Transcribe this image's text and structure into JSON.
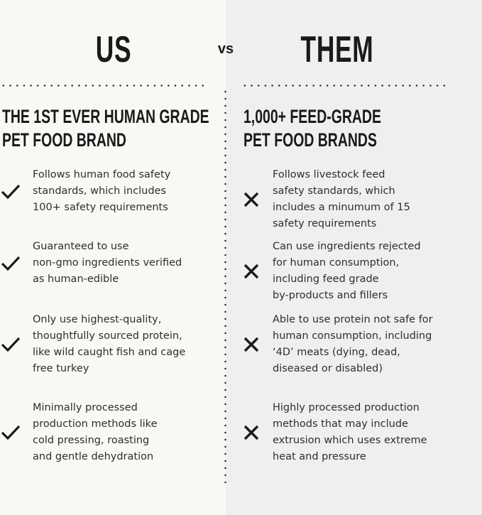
{
  "us": {
    "title": "US",
    "heading": [
      "THE 1ST EVER HUMAN GRADE",
      "PET FOOD BRAND"
    ],
    "items": [
      {
        "icon": "check-icon",
        "lines": [
          "Follows human food safety",
          "standards, which includes",
          "100+ safety requirements"
        ]
      },
      {
        "icon": "check-icon",
        "lines": [
          "Guaranteed to use",
          "non-gmo ingredients verified",
          "as human-edible"
        ]
      },
      {
        "icon": "check-icon",
        "lines": [
          "Only use highest-quality,",
          "thoughtfully sourced protein,",
          "like wild caught fish and cage",
          "free turkey"
        ]
      },
      {
        "icon": "check-icon",
        "lines": [
          "Minimally processed",
          "production methods like",
          "cold pressing, roasting",
          "and gentle dehydration"
        ]
      }
    ]
  },
  "vs": "vs",
  "them": {
    "title": "THEM",
    "heading": [
      "1,000+ FEED-GRADE",
      "PET FOOD BRANDS"
    ],
    "items": [
      {
        "icon": "x-icon",
        "lines": [
          "Follows livestock feed",
          "safety standards, which",
          "includes a minumum of 15",
          "safety requirements"
        ]
      },
      {
        "icon": "x-icon",
        "lines": [
          "Can use ingredients rejected",
          "for human consumption,",
          "including feed grade",
          "by-products and fillers"
        ]
      },
      {
        "icon": "x-icon",
        "lines": [
          "Able to use protein not safe for",
          "human consumption, including",
          "‘4D’ meats (dying, dead,",
          "diseased or disabled)"
        ]
      },
      {
        "icon": "x-icon",
        "lines": [
          "Highly processed production",
          "methods that may include",
          "extrusion which uses extreme",
          "heat and pressure"
        ]
      }
    ]
  },
  "colors": {
    "left_bg": "#faf8f4",
    "right_bg": "#efefef",
    "text": "#1a1a1a"
  }
}
